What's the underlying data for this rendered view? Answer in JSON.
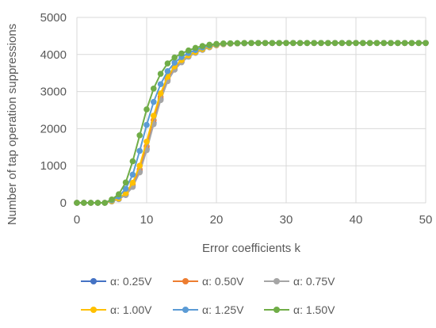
{
  "chart_data": {
    "type": "line",
    "title": "",
    "xlabel": "Error coefficients k",
    "ylabel": "Number of tap operation suppressions",
    "xlim": [
      0,
      50
    ],
    "ylim": [
      0,
      5000
    ],
    "xticks": [
      0,
      10,
      20,
      30,
      40,
      50
    ],
    "yticks": [
      0,
      1000,
      2000,
      3000,
      4000,
      5000
    ],
    "grid": "vertical and horizontal major gridlines",
    "legend_position": "bottom",
    "x": [
      0,
      1,
      2,
      3,
      4,
      5,
      6,
      7,
      8,
      9,
      10,
      11,
      12,
      13,
      14,
      15,
      16,
      17,
      18,
      19,
      20,
      21,
      22,
      23,
      24,
      25,
      26,
      27,
      28,
      29,
      30,
      31,
      32,
      33,
      34,
      35,
      36,
      37,
      38,
      39,
      40,
      41,
      42,
      43,
      44,
      45,
      46,
      47,
      48,
      49,
      50
    ],
    "series": [
      {
        "name": "α: 0.25V",
        "color": "#4472C4",
        "values": [
          0,
          0,
          0,
          0,
          0,
          40,
          100,
          220,
          450,
          850,
          1450,
          2150,
          2800,
          3300,
          3600,
          3800,
          3950,
          4050,
          4130,
          4200,
          4250,
          4280,
          4295,
          4300,
          4305,
          4310,
          4310,
          4310,
          4310,
          4310,
          4310,
          4310,
          4310,
          4310,
          4310,
          4310,
          4310,
          4310,
          4310,
          4310,
          4310,
          4310,
          4310,
          4310,
          4310,
          4310,
          4310,
          4310,
          4310,
          4310,
          4310
        ]
      },
      {
        "name": "α: 0.50V",
        "color": "#ED7D31",
        "values": [
          0,
          0,
          0,
          0,
          0,
          45,
          110,
          240,
          490,
          900,
          1520,
          2230,
          2860,
          3340,
          3630,
          3820,
          3960,
          4060,
          4140,
          4205,
          4255,
          4282,
          4296,
          4301,
          4306,
          4310,
          4310,
          4310,
          4310,
          4310,
          4310,
          4310,
          4310,
          4310,
          4310,
          4310,
          4310,
          4310,
          4310,
          4310,
          4310,
          4310,
          4310,
          4310,
          4310,
          4310,
          4310,
          4310,
          4310,
          4310,
          4310
        ]
      },
      {
        "name": "α: 0.75V",
        "color": "#A5A5A5",
        "values": [
          0,
          0,
          0,
          0,
          0,
          40,
          100,
          210,
          430,
          820,
          1420,
          2120,
          2770,
          3280,
          3590,
          3790,
          3940,
          4045,
          4125,
          4195,
          4248,
          4278,
          4294,
          4300,
          4305,
          4310,
          4310,
          4310,
          4310,
          4310,
          4310,
          4310,
          4310,
          4310,
          4310,
          4310,
          4310,
          4310,
          4310,
          4310,
          4310,
          4310,
          4310,
          4310,
          4310,
          4310,
          4310,
          4310,
          4310,
          4310,
          4310
        ]
      },
      {
        "name": "α: 1.00V",
        "color": "#FFC000",
        "values": [
          0,
          0,
          0,
          0,
          0,
          50,
          120,
          260,
          540,
          1000,
          1650,
          2350,
          2950,
          3400,
          3680,
          3850,
          3980,
          4070,
          4150,
          4210,
          4258,
          4284,
          4297,
          4302,
          4307,
          4310,
          4310,
          4310,
          4310,
          4310,
          4310,
          4310,
          4310,
          4310,
          4310,
          4310,
          4310,
          4310,
          4310,
          4310,
          4310,
          4310,
          4310,
          4310,
          4310,
          4310,
          4310,
          4310,
          4310,
          4310,
          4310
        ]
      },
      {
        "name": "α: 1.25V",
        "color": "#5B9BD5",
        "values": [
          0,
          0,
          0,
          0,
          0,
          70,
          170,
          380,
          760,
          1400,
          2100,
          2720,
          3200,
          3550,
          3780,
          3930,
          4040,
          4120,
          4190,
          4240,
          4275,
          4292,
          4300,
          4305,
          4308,
          4310,
          4310,
          4310,
          4310,
          4310,
          4310,
          4310,
          4310,
          4310,
          4310,
          4310,
          4310,
          4310,
          4310,
          4310,
          4310,
          4310,
          4310,
          4310,
          4310,
          4310,
          4310,
          4310,
          4310,
          4310,
          4310
        ]
      },
      {
        "name": "α: 1.50V",
        "color": "#70AD47",
        "values": [
          0,
          0,
          0,
          0,
          0,
          90,
          230,
          550,
          1120,
          1820,
          2520,
          3080,
          3480,
          3760,
          3920,
          4030,
          4110,
          4180,
          4230,
          4265,
          4285,
          4298,
          4303,
          4307,
          4310,
          4310,
          4310,
          4310,
          4310,
          4310,
          4310,
          4310,
          4310,
          4310,
          4310,
          4310,
          4310,
          4310,
          4310,
          4310,
          4310,
          4310,
          4310,
          4310,
          4310,
          4310,
          4310,
          4310,
          4310,
          4310,
          4310
        ]
      }
    ]
  }
}
